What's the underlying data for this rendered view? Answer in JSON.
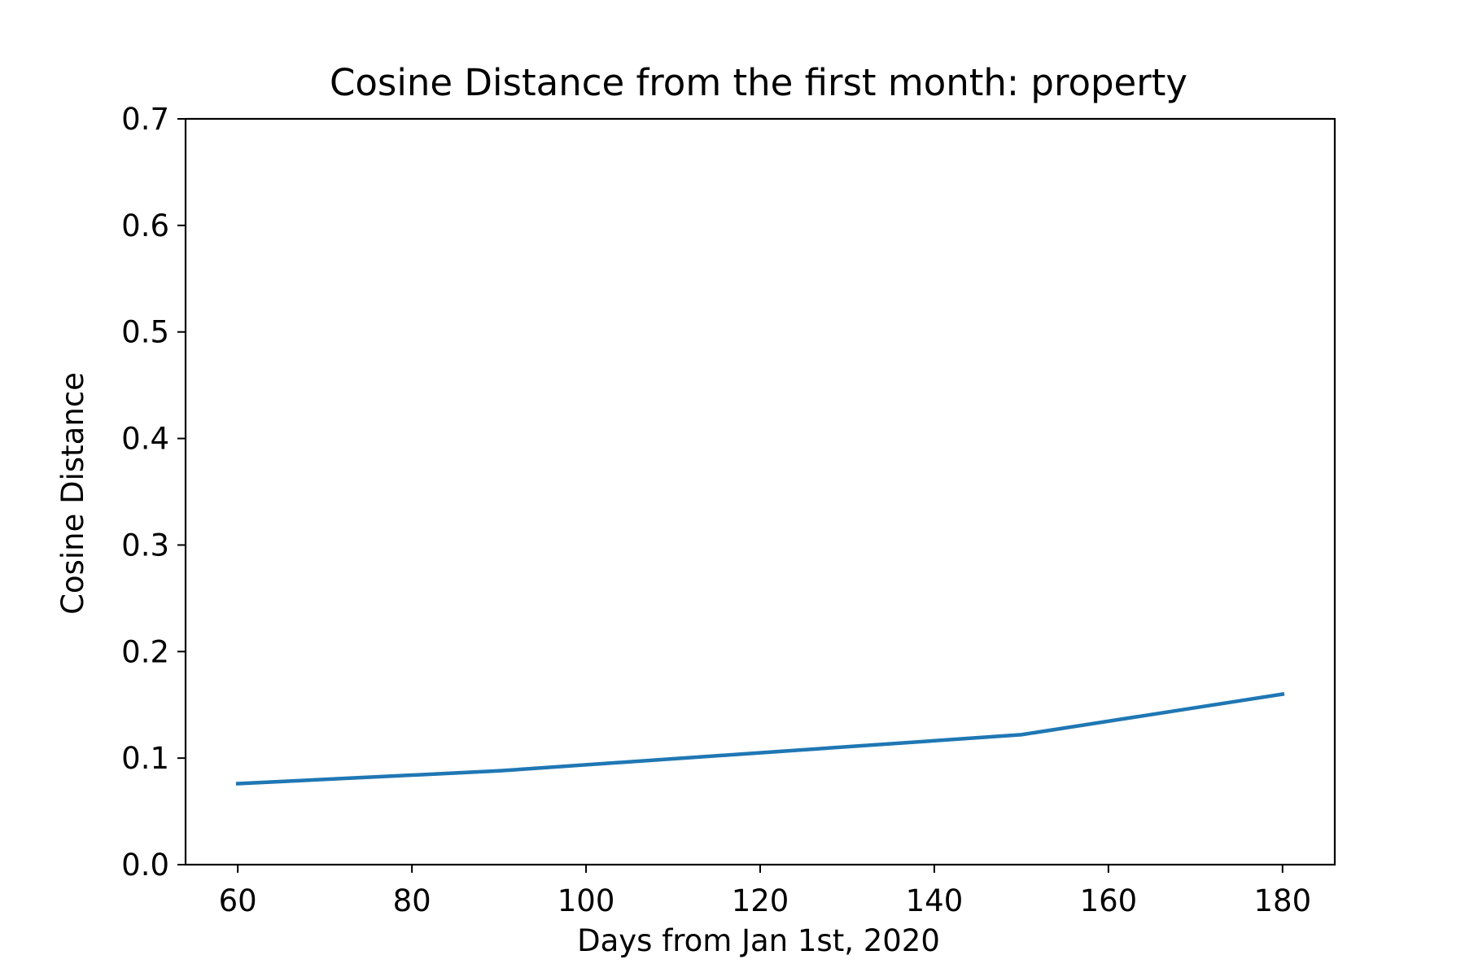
{
  "chart_data": {
    "type": "line",
    "title": "Cosine Distance from the first month: property",
    "xlabel": "Days from Jan 1st, 2020",
    "ylabel": "Cosine Distance",
    "xlim": [
      54,
      186
    ],
    "ylim": [
      0.0,
      0.7
    ],
    "x_ticks": [
      60,
      80,
      100,
      120,
      140,
      160,
      180
    ],
    "x_tick_labels": [
      "60",
      "80",
      "100",
      "120",
      "140",
      "160",
      "180"
    ],
    "y_ticks": [
      0.0,
      0.1,
      0.2,
      0.3,
      0.4,
      0.5,
      0.6,
      0.7
    ],
    "y_tick_labels": [
      "0.0",
      "0.1",
      "0.2",
      "0.3",
      "0.4",
      "0.5",
      "0.6",
      "0.7"
    ],
    "grid": false,
    "series": [
      {
        "color": "#1f77b4",
        "x": [
          60,
          90,
          120,
          150,
          180
        ],
        "y": [
          0.076,
          0.088,
          0.105,
          0.122,
          0.16
        ]
      }
    ]
  }
}
